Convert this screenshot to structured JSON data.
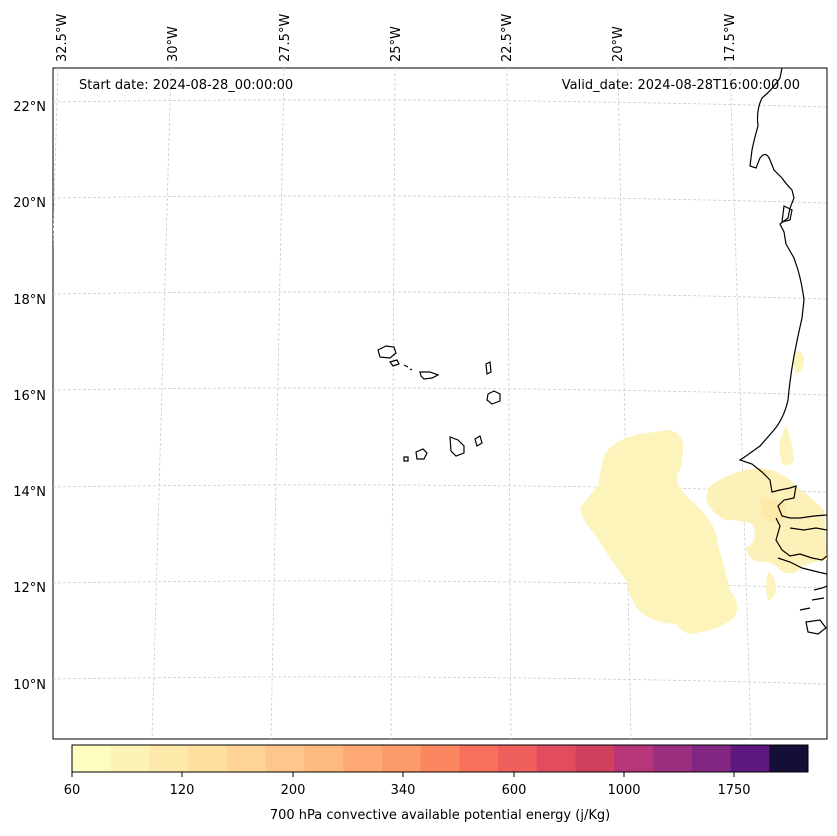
{
  "header": {
    "start_date": "Start date: 2024-08-28_00:00:00",
    "valid_date": "Valid_date: 2024-08-28T16:00:00.00"
  },
  "map": {
    "longitude_labels": [
      "32.5°W",
      "30°W",
      "27.5°W",
      "25°W",
      "22.5°W",
      "20°W",
      "17.5°W"
    ],
    "latitude_labels": [
      "22°N",
      "20°N",
      "18°N",
      "16°N",
      "14°N",
      "12°N",
      "10°N"
    ],
    "gridlines": "dashed"
  },
  "colorbar": {
    "label": "700 hPa convective available potential energy (j/Kg)",
    "tick_labels": [
      "60",
      "120",
      "200",
      "340",
      "600",
      "1000",
      "1750"
    ],
    "colors": [
      "#fcfdbf",
      "#fcf3b5",
      "#fde9a9",
      "#fedf9b",
      "#fed395",
      "#fec68a",
      "#feb97f",
      "#fea973",
      "#fd9a6a",
      "#fb8761",
      "#f7705c",
      "#ef5f5d",
      "#e14d5f",
      "#d0415f",
      "#b63679",
      "#9c2e7f",
      "#822681",
      "#5d177f",
      "#150e37"
    ],
    "cmap": "magma_r"
  }
}
